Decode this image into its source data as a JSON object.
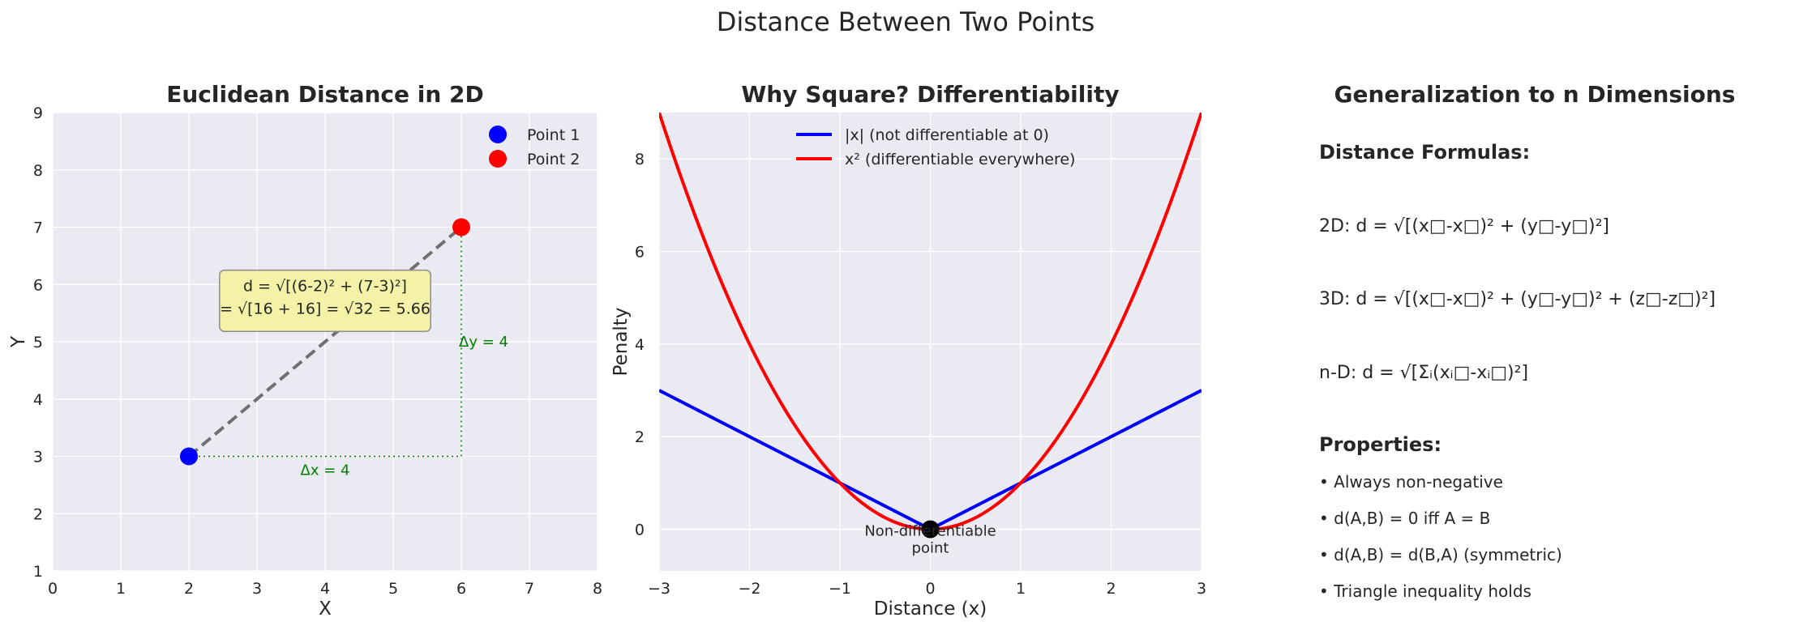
{
  "suptitle": "Distance Between Two Points",
  "colors": {
    "axes_bg": "#eaeaf2",
    "grid": "#ffffff",
    "point1": "#0000ff",
    "point2": "#ff0000",
    "dashed_line": "#707070",
    "delta": "#008000",
    "annotation_bg": "#f3f2a6",
    "abs_line": "#0000ff",
    "square_line": "#ff0000",
    "marker": "#000000"
  },
  "chart_data": [
    {
      "type": "scatter",
      "title": "Euclidean Distance in 2D",
      "xlabel": "X",
      "ylabel": "Y",
      "xlim": [
        0,
        8
      ],
      "ylim": [
        1,
        9
      ],
      "xticks": [
        "0",
        "1",
        "2",
        "3",
        "4",
        "5",
        "6",
        "7",
        "8"
      ],
      "yticks": [
        "1",
        "2",
        "3",
        "4",
        "5",
        "6",
        "7",
        "8",
        "9"
      ],
      "grid": true,
      "legend_placement": "top-right",
      "series": [
        {
          "name": "Point 1",
          "x": [
            2
          ],
          "y": [
            3
          ]
        },
        {
          "name": "Point 2",
          "x": [
            6
          ],
          "y": [
            7
          ]
        }
      ],
      "annotations": {
        "formula_line1": "d = √[(6-2)² + (7-3)²]",
        "formula_line2": "= √[16 + 16] = √32 = 5.66",
        "dx_label": "Δx = 4",
        "dy_label": "Δy = 4"
      }
    },
    {
      "type": "line",
      "title": "Why Square? Differentiability",
      "xlabel": "Distance (x)",
      "ylabel": "Penalty",
      "xlim": [
        -3,
        3
      ],
      "ylim": [
        -0.9,
        9
      ],
      "xticks": [
        "−3",
        "−2",
        "−1",
        "0",
        "1",
        "2",
        "3"
      ],
      "yticks": [
        "0",
        "2",
        "4",
        "6",
        "8"
      ],
      "grid": true,
      "legend_placement": "top-center",
      "series": [
        {
          "name": "|x| (not differentiable at 0)",
          "function": "abs"
        },
        {
          "name": "x² (differentiable everywhere)",
          "function": "square"
        }
      ],
      "marker_point": {
        "x": 0,
        "y": 0
      },
      "annotation": {
        "line1": "Non-differentiable",
        "line2": "point"
      }
    }
  ],
  "panel3": {
    "title": "Generalization to n Dimensions",
    "formulas_heading": "Distance Formulas:",
    "formula_2d": "2D: d = √[(x□-x□)² + (y□-y□)²]",
    "formula_3d": "3D: d = √[(x□-x□)² + (y□-y□)² + (z□-z□)²]",
    "formula_nd": "n-D: d = √[Σᵢ(xᵢ□-xᵢ□)²]",
    "properties_heading": "Properties:",
    "properties": [
      "• Always non-negative",
      "• d(A,B) = 0 iff A = B",
      "• d(A,B) = d(B,A) (symmetric)",
      "• Triangle inequality holds"
    ]
  }
}
